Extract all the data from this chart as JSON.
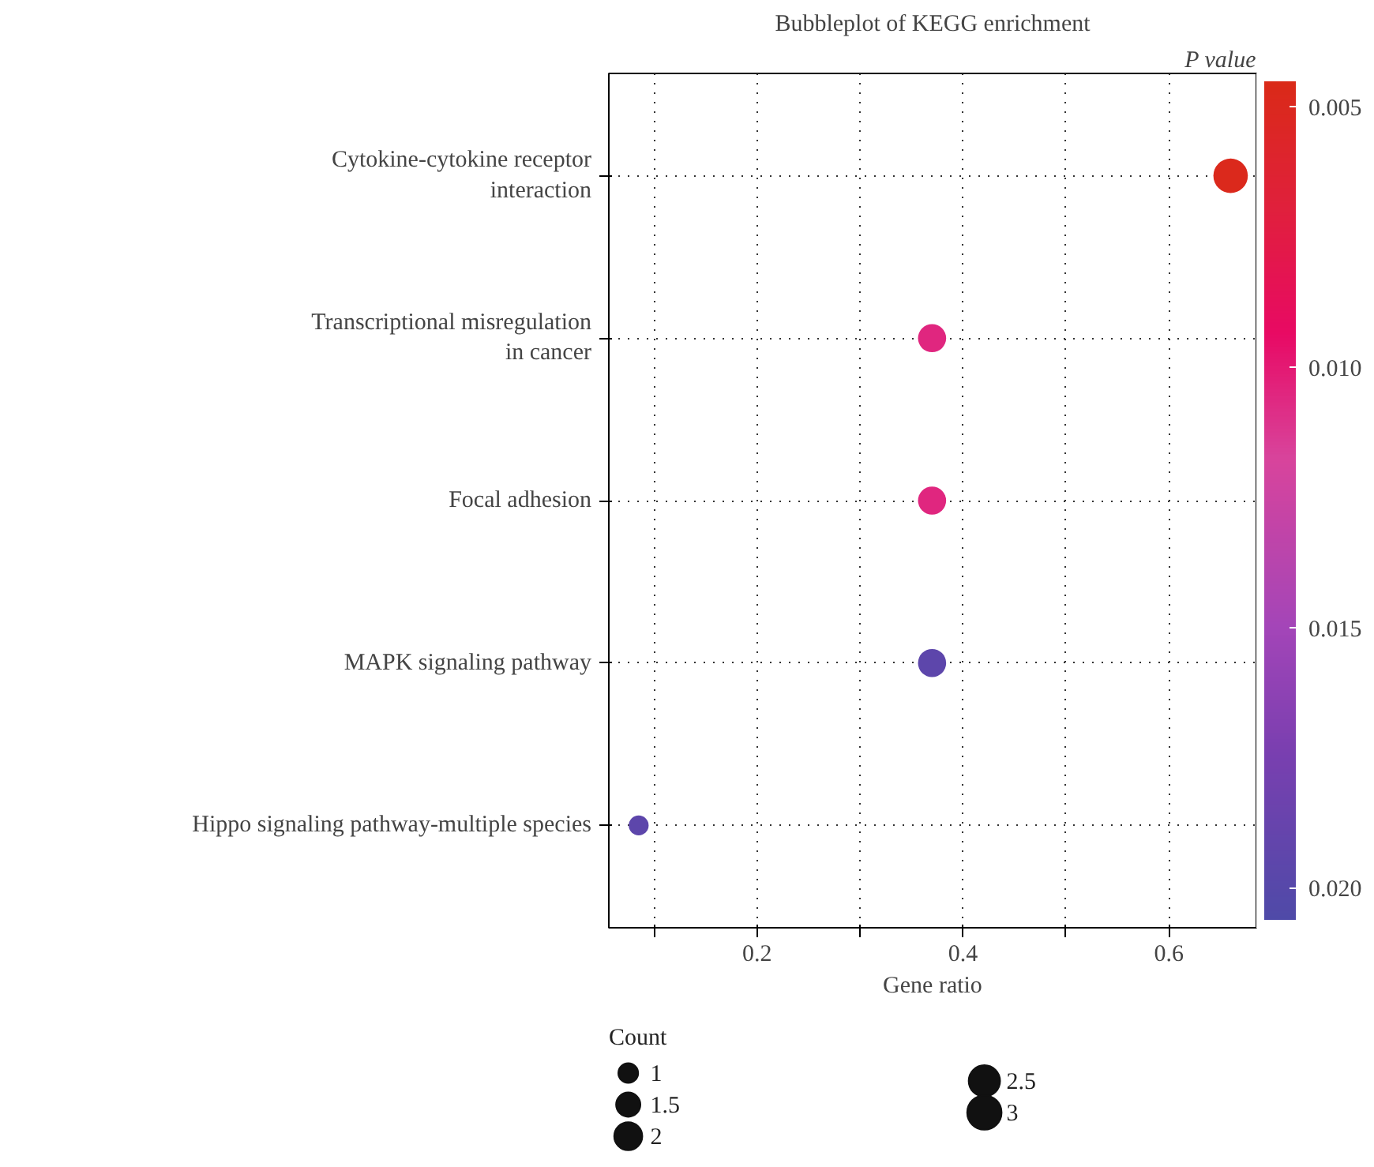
{
  "chart_data": {
    "type": "bubble",
    "title": "Bubbleplot of KEGG enrichment",
    "xlabel": "Gene ratio",
    "clabel": "P value",
    "legend_title": "Count",
    "categories": [
      "Cytokine-cytokine receptor\ninteraction",
      "Transcriptional misregulation\nin cancer",
      "Focal adhesion",
      "MAPK signaling pathway",
      "Hippo signaling pathway-multiple species"
    ],
    "orientation": "horizontal",
    "values": [
      0.66,
      0.37,
      0.37,
      0.37,
      0.085
    ],
    "sizes": [
      3,
      2,
      2,
      2,
      1
    ],
    "cvalues": [
      0.0048,
      0.0105,
      0.0105,
      0.0195,
      0.0195
    ],
    "size_legend": [
      1,
      1.5,
      2,
      2.5,
      3
    ],
    "clim": [
      0.0206,
      0.0045
    ],
    "cticks": [
      0.005,
      {
        "value": 0.01,
        "label": "0.010"
      },
      0.015,
      {
        "value": 0.02,
        "label": "0.020"
      }
    ],
    "xlim": [
      0.056,
      0.685
    ],
    "xticks": [
      {
        "value": 0.1,
        "label": null
      },
      0.2,
      {
        "value": 0.3,
        "label": null
      },
      0.4,
      {
        "value": 0.5,
        "label": null
      },
      0.6
    ],
    "grid": true,
    "marker": "circle"
  }
}
